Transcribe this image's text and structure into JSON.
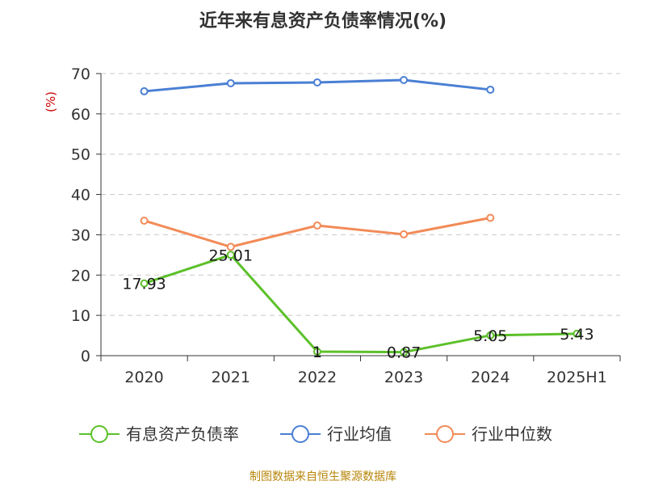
{
  "chart_data": {
    "type": "line",
    "title": "近年来有息资产负债率情况(%)",
    "ylabel": "(%)",
    "ylim": [
      0,
      70
    ],
    "yticks": [
      0,
      10,
      20,
      30,
      40,
      50,
      60,
      70
    ],
    "categories": [
      "2020",
      "2021",
      "2022",
      "2023",
      "2024",
      "2025H1"
    ],
    "grid": true,
    "legend_position": "bottom",
    "series": [
      {
        "name": "有息资产负债率",
        "color": "#5cc02a",
        "values": [
          17.93,
          25.01,
          1,
          0.87,
          5.05,
          5.43
        ],
        "labels": [
          "17.93",
          "25.01",
          "1",
          "0.87",
          "5.05",
          "5.43"
        ]
      },
      {
        "name": "行业均值",
        "color": "#4a7fd4",
        "values": [
          65.6,
          67.6,
          67.8,
          68.4,
          66.0,
          null
        ]
      },
      {
        "name": "行业中位数",
        "color": "#f28b58",
        "values": [
          33.5,
          27.0,
          32.3,
          30.1,
          34.2,
          null
        ]
      }
    ]
  },
  "footer": "制图数据来自恒生聚源数据库"
}
